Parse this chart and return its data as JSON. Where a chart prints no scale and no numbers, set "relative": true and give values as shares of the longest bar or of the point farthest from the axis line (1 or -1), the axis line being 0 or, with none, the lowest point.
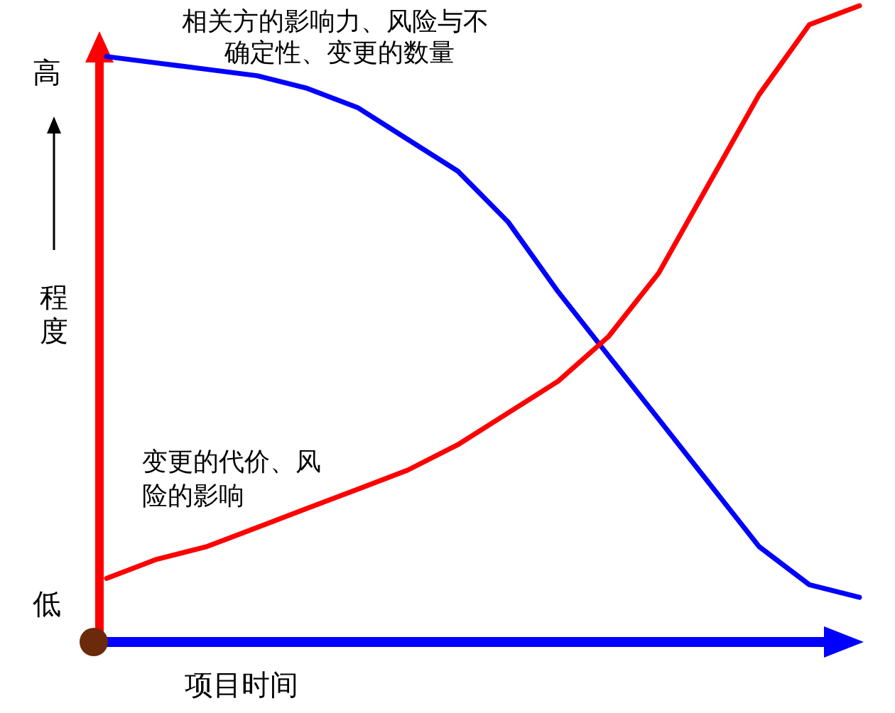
{
  "chart_data": {
    "type": "line",
    "relative": true,
    "xlabel": "项目时间",
    "ylabel": "程度",
    "annotations": [
      "高",
      "低"
    ],
    "categories": [
      null,
      null,
      null,
      null,
      null,
      null,
      null,
      null,
      null,
      null,
      null,
      null,
      null,
      null,
      null,
      null
    ],
    "series": [
      {
        "name": "相关方的影响力、风险与不确定性、变更的数量",
        "color": "#0000ff",
        "values": [
          0.92,
          0.91,
          0.9,
          0.89,
          0.87,
          0.84,
          0.79,
          0.74,
          0.66,
          0.55,
          0.45,
          0.35,
          0.25,
          0.15,
          0.09,
          0.07
        ]
      },
      {
        "name": "变更的代价、风险的影响",
        "color": "#ff0000",
        "values": [
          0.1,
          0.13,
          0.15,
          0.18,
          0.21,
          0.24,
          0.27,
          0.31,
          0.36,
          0.41,
          0.48,
          0.58,
          0.72,
          0.86,
          0.97,
          1.0
        ]
      }
    ]
  }
}
